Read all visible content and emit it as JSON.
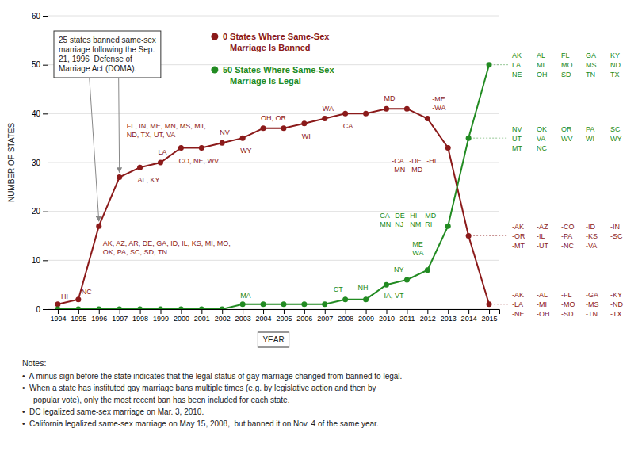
{
  "chart_data": {
    "type": "line",
    "x_label": "YEAR",
    "y_label": "NUMBER OF STATES",
    "x": [
      1994,
      1995,
      1996,
      1997,
      1998,
      1999,
      2000,
      2001,
      2002,
      2003,
      2004,
      2005,
      2006,
      2007,
      2008,
      2009,
      2010,
      2011,
      2012,
      2013,
      2014,
      2015
    ],
    "xlim": [
      1993.5,
      2015.5
    ],
    "xticks": [
      1994,
      1995,
      1996,
      1997,
      1998,
      1999,
      2000,
      2001,
      2002,
      2003,
      2004,
      2005,
      2006,
      2007,
      2008,
      2009,
      2010,
      2011,
      2012,
      2013,
      2014,
      2015
    ],
    "ylim": [
      0,
      60
    ],
    "yticks": [
      0,
      10,
      20,
      30,
      40,
      50,
      60
    ],
    "grid": true,
    "legend": "upper center",
    "series": [
      {
        "name": "0 States Where Same-Sex\n   Marriage Is Banned",
        "color": "#8B1A1A",
        "marker": "circle",
        "values": [
          1,
          2,
          17,
          27,
          29,
          30,
          33,
          33,
          34,
          35,
          37,
          37,
          38,
          39,
          40,
          40,
          41,
          41,
          39,
          33,
          15,
          1
        ],
        "annotations": [
          [
            "HI"
          ],
          [
            "NC"
          ],
          [
            "AK, AZ, AR, DE, GA, ID, IL, KS, MI, MO,",
            "OK, PA, SC, SD, TN"
          ],
          [
            "FL, IN, ME, MN, MS, MT,",
            "ND, TX, UT, VA"
          ],
          [
            "AL, KY"
          ],
          [
            "LA"
          ],
          [
            "CO, NE, WV"
          ],
          null,
          [
            "NV"
          ],
          [
            "WY"
          ],
          [
            "OH, OR"
          ],
          null,
          [
            "WI"
          ],
          [
            "WA"
          ],
          [
            "CA"
          ],
          null,
          [
            "MD"
          ],
          null,
          [
            "-ME",
            "-WA"
          ],
          [
            "-CA",
            "-DE",
            "-HI",
            "-MN",
            "-MD"
          ],
          [
            "-AK",
            "-AZ",
            "-CO",
            "-ID",
            "-IN",
            "-OR",
            "-IL",
            "-PA",
            "-KS",
            "-SC",
            "-MT",
            "-UT",
            "-NC",
            "-VA"
          ],
          [
            "-AK",
            "-AL",
            "-FL",
            "-GA",
            "-KY",
            "-LA",
            "-MI",
            "-MO",
            "-MS",
            "-ND",
            "-NE",
            "-OH",
            "-SD",
            "-TN",
            "-TX"
          ]
        ]
      },
      {
        "name": "50 States Where Same-Sex\n   Marriage Is Legal",
        "color": "#228B22",
        "marker": "circle",
        "values": [
          0,
          0,
          0,
          0,
          0,
          0,
          0,
          0,
          0,
          1,
          1,
          1,
          1,
          1,
          2,
          2,
          5,
          6,
          8,
          17,
          35,
          50
        ],
        "annotations": [
          null,
          null,
          null,
          null,
          null,
          null,
          null,
          null,
          null,
          [
            "MA"
          ],
          null,
          null,
          null,
          null,
          [
            "CT"
          ],
          [
            "NH"
          ],
          [
            "IA, VT"
          ],
          [
            "NY"
          ],
          [
            "ME",
            "WA"
          ],
          [
            "CA",
            "DE",
            "HI",
            "MD",
            "MN",
            "NJ",
            "NM",
            "RI"
          ],
          [
            "NV",
            "OK",
            "OR",
            "PA",
            "SC",
            "UT",
            "VA",
            "WV",
            "WI",
            "WY",
            "MT",
            "NC"
          ],
          [
            "AK",
            "AL",
            "FL",
            "GA",
            "KY",
            "LA",
            "MI",
            "MO",
            "MS",
            "ND",
            "NE",
            "OH",
            "SD",
            "TN",
            "TX"
          ]
        ]
      }
    ],
    "annotations": [
      {
        "text": "25 states banned same-sex\nmarriage following the Sep.\n21, 1996  Defense of\nMarriage Act (DOMA)."
      }
    ],
    "notes_title": "Notes:",
    "notes": [
      "•  A minus sign before the state indicates that the legal status of gay marriage changed from banned to legal.",
      "•  When a state has instituted gay marriage bans multiple times (e.g. by legislative action and then by",
      "     popular vote), only the most recent ban has been included for each state.",
      "•  DC legalized same-sex marriage on Mar. 3, 2010.",
      "•  California legalized same-sex marriage on May 15, 2008,  but banned it on Nov. 4 of the same year."
    ]
  }
}
